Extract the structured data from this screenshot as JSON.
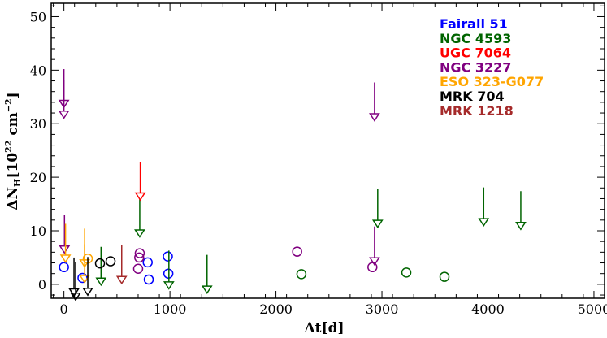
{
  "chart_data": {
    "type": "scatter",
    "xlabel_main": "Δt",
    "xlabel_unit": "[d]",
    "ylabel_main": "ΔN",
    "ylabel_sub": "H",
    "ylabel_unit": "[10",
    "ylabel_exp1": "22",
    "ylabel_mid": " cm",
    "ylabel_exp2": "−2",
    "ylabel_close": "]",
    "xlim": [
      -120,
      5100
    ],
    "ylim": [
      -2.6,
      52.5
    ],
    "xticks": [
      0,
      1000,
      2000,
      3000,
      4000,
      5000
    ],
    "yticks": [
      0,
      10,
      20,
      30,
      40,
      50
    ],
    "xtick_labels": [
      "0",
      "1000",
      "2000",
      "3000",
      "4000",
      "5000"
    ],
    "ytick_labels": [
      "0",
      "10",
      "20",
      "30",
      "40",
      "50"
    ],
    "legend_position": "top-right",
    "series": [
      {
        "name": "Fairall 51",
        "color": "#0000ff",
        "detections": [
          [
            0,
            3.2
          ],
          [
            175,
            1.2
          ],
          [
            790,
            4.1
          ],
          [
            800,
            0.9
          ],
          [
            980,
            5.2
          ],
          [
            985,
            2.0
          ]
        ],
        "upper_limits": []
      },
      {
        "name": "NGC 4593",
        "color": "#006400",
        "detections": [
          [
            2240,
            1.9
          ],
          [
            3230,
            2.2
          ],
          [
            3590,
            1.4
          ]
        ],
        "upper_limits": [
          [
            350,
            1.0
          ],
          [
            715,
            10.0
          ],
          [
            990,
            0.3
          ],
          [
            1350,
            -0.5
          ],
          [
            2960,
            11.8
          ],
          [
            3960,
            12.1
          ],
          [
            4310,
            11.4
          ]
        ]
      },
      {
        "name": "UGC 7064",
        "color": "#ff0000",
        "detections": [],
        "upper_limits": [
          [
            720,
            16.9
          ]
        ]
      },
      {
        "name": "NGC 3227",
        "color": "#800080",
        "detections": [
          [
            700,
            2.9
          ],
          [
            710,
            5.0
          ],
          [
            715,
            5.8
          ],
          [
            2200,
            6.1
          ],
          [
            2910,
            3.2
          ]
        ],
        "upper_limits": [
          [
            0,
            34.2
          ],
          [
            0,
            32.2
          ],
          [
            5,
            7.0
          ],
          [
            2930,
            31.7
          ],
          [
            2930,
            4.8
          ]
        ]
      },
      {
        "name": "ESO 323-G077",
        "color": "#ffa500",
        "detections": [
          [
            225,
            4.8
          ]
        ],
        "upper_limits": [
          [
            15,
            5.3
          ],
          [
            195,
            1.5
          ],
          [
            195,
            4.4
          ]
        ]
      },
      {
        "name": "MRK 704",
        "color": "#000000",
        "detections": [
          [
            340,
            3.9
          ],
          [
            440,
            4.3
          ]
        ],
        "upper_limits": [
          [
            95,
            -1.0
          ],
          [
            110,
            -1.8
          ],
          [
            225,
            -0.9
          ]
        ]
      },
      {
        "name": "MRK 1218",
        "color": "#a52a2a",
        "detections": [],
        "upper_limits": [
          [
            545,
            1.3
          ]
        ]
      }
    ]
  }
}
